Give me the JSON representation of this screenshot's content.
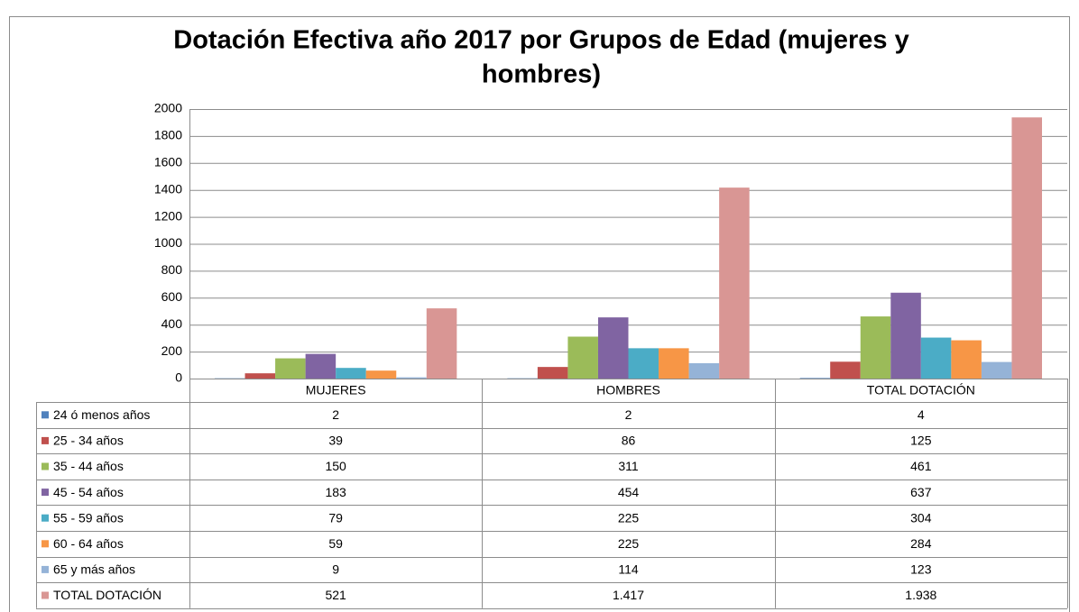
{
  "chart_data": {
    "type": "bar",
    "title_lines": [
      "Dotación Efectiva año 2017  por Grupos de Edad (mujeres y",
      "hombres)"
    ],
    "categories": [
      "MUJERES",
      "HOMBRES",
      "TOTAL DOTACIÓN"
    ],
    "series": [
      {
        "name": "24 ó menos años",
        "color": "#4f81bd",
        "values": [
          2,
          2,
          4
        ]
      },
      {
        "name": "25 - 34  años",
        "color": "#c0504d",
        "values": [
          39,
          86,
          125
        ]
      },
      {
        "name": "35 - 44  años",
        "color": "#9bbb59",
        "values": [
          150,
          311,
          461
        ]
      },
      {
        "name": "45 - 54  años",
        "color": "#8064a2",
        "values": [
          183,
          454,
          637
        ]
      },
      {
        "name": "55 - 59  años",
        "color": "#4bacc6",
        "values": [
          79,
          225,
          304
        ]
      },
      {
        "name": "60 - 64  años",
        "color": "#f79646",
        "values": [
          59,
          225,
          284
        ]
      },
      {
        "name": "65 y más años",
        "color": "#95b3d7",
        "values": [
          9,
          114,
          123
        ]
      },
      {
        "name": "TOTAL DOTACIÓN",
        "color": "#d99694",
        "values": [
          521,
          1417,
          1938
        ],
        "value_labels": [
          "521",
          "1.417",
          "1.938"
        ]
      }
    ],
    "ylim": [
      0,
      2000
    ],
    "yticks": [
      0,
      200,
      400,
      600,
      800,
      1000,
      1200,
      1400,
      1600,
      1800,
      2000
    ],
    "grid": true
  }
}
